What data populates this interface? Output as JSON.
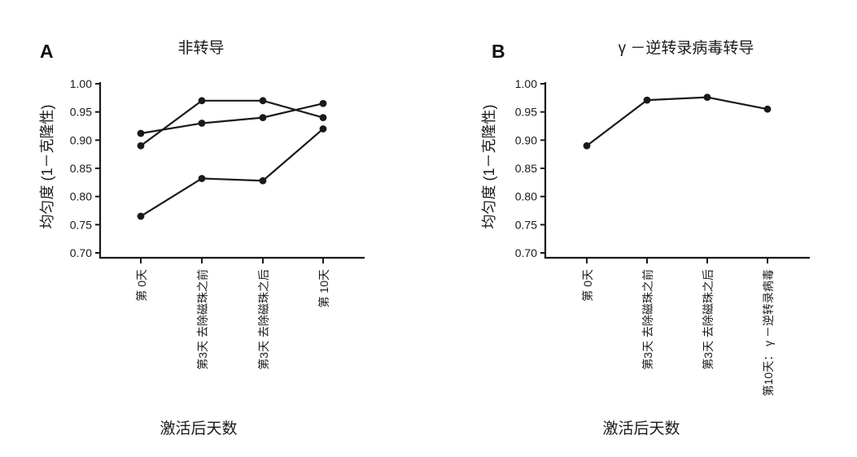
{
  "panels": [
    {
      "letter": "A"
    },
    {
      "letter": "B"
    }
  ],
  "chart_data": [
    {
      "type": "line",
      "panel": "A",
      "title": "非转导",
      "xlabel": "激活后天数",
      "ylabel": "均匀度 (1－克隆性)",
      "categories": [
        "第 0天",
        "第3天 去除磁珠之前",
        "第3天 去除磁珠之后",
        "第 10天"
      ],
      "series": [
        {
          "name": "series-1",
          "values": [
            0.912,
            0.93,
            0.94,
            0.965
          ]
        },
        {
          "name": "series-2",
          "values": [
            0.89,
            0.97,
            0.97,
            0.94
          ]
        },
        {
          "name": "series-3",
          "values": [
            0.765,
            0.832,
            0.828,
            0.92
          ]
        }
      ],
      "ylim": [
        0.7,
        1.0
      ],
      "yticks": [
        "1.00",
        "0.95",
        "0.90",
        "0.85",
        "0.80",
        "0.75",
        "0.70"
      ],
      "grid": false,
      "legend": "none",
      "line_color": "#1a1a1a",
      "marker": "circle"
    },
    {
      "type": "line",
      "panel": "B",
      "title": "γ －逆转录病毒转导",
      "xlabel": "激活后天数",
      "ylabel": "均匀度 (1－克隆性)",
      "categories": [
        "第 0天",
        "第3天 去除磁珠之前",
        "第3天 去除磁珠之后",
        "第10天： γ －逆转录病毒"
      ],
      "series": [
        {
          "name": "series-1",
          "values": [
            0.89,
            0.971,
            0.976,
            0.955
          ]
        }
      ],
      "ylim": [
        0.7,
        1.0
      ],
      "yticks": [
        "1.00",
        "0.95",
        "0.90",
        "0.85",
        "0.80",
        "0.75",
        "0.70"
      ],
      "grid": false,
      "legend": "none",
      "line_color": "#1a1a1a",
      "marker": "circle"
    }
  ]
}
